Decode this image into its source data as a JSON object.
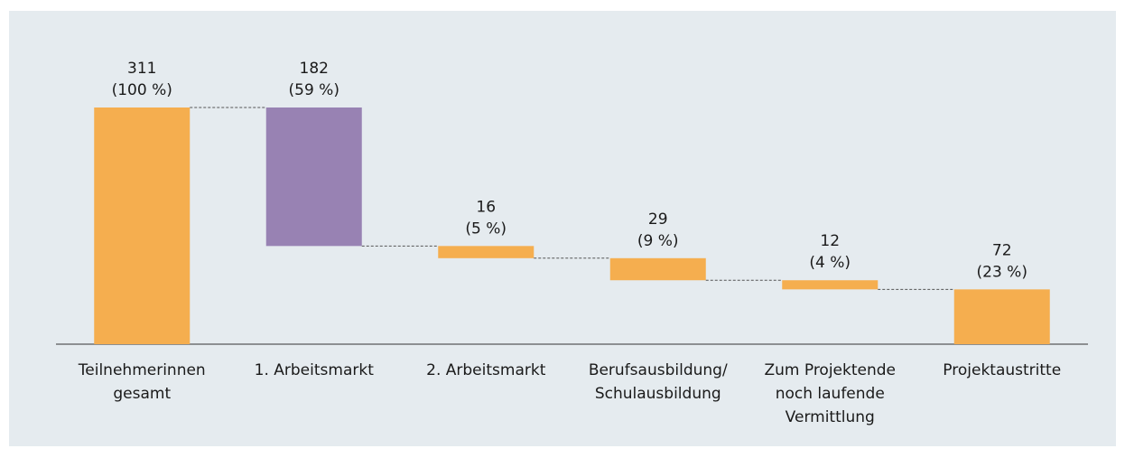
{
  "chart_data": {
    "type": "waterfall",
    "categories": [
      [
        "Teilnehmerinnen",
        "gesamt"
      ],
      [
        "1. Arbeitsmarkt"
      ],
      [
        "2. Arbeitsmarkt"
      ],
      [
        "Berufsausbildung/",
        "Schulausbildung"
      ],
      [
        "Zum Projektende",
        "noch laufende",
        "Vermittlung"
      ],
      [
        "Projektaustritte"
      ]
    ],
    "values": [
      311,
      182,
      16,
      29,
      12,
      72
    ],
    "percents": [
      100,
      59,
      5,
      9,
      4,
      23
    ],
    "percent_labels": [
      "(100 %)",
      "(59 %)",
      "(5 %)",
      "(9 %)",
      "(4 %)",
      "(23 %)"
    ],
    "totals": [
      true,
      false,
      false,
      false,
      false,
      true
    ],
    "colors": [
      "#f5ae4f",
      "#9882b3",
      "#f5ae4f",
      "#f5ae4f",
      "#f5ae4f",
      "#f5ae4f"
    ]
  }
}
